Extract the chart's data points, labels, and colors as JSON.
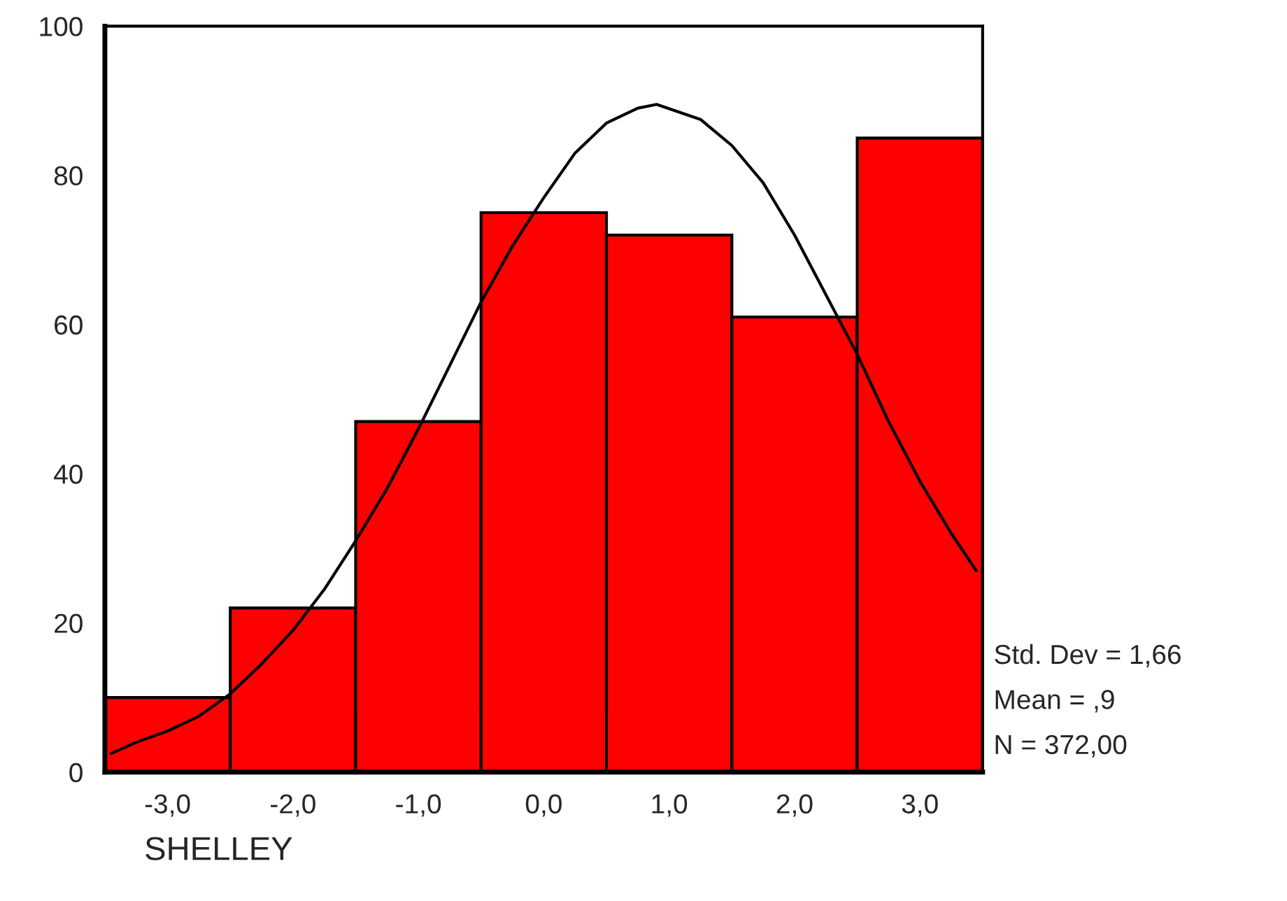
{
  "chart_data": {
    "type": "histogram",
    "xlabel": "SHELLEY",
    "bins": [
      -3.5,
      -2.5,
      -1.5,
      -0.5,
      0.5,
      1.5,
      2.5,
      3.5
    ],
    "values": [
      10,
      22,
      47,
      75,
      72,
      61,
      85
    ],
    "color": "#ff0000",
    "series": [
      {
        "type": "line",
        "color": "#000000",
        "x": [
          -3.45,
          -3.25,
          -3,
          -2.75,
          -2.5,
          -2.25,
          -2,
          -1.75,
          -1.5,
          -1.25,
          -1,
          -0.75,
          -0.5,
          -0.25,
          0,
          0.25,
          0.5,
          0.75,
          0.9,
          1.25,
          1.5,
          1.75,
          2,
          2.25,
          2.5,
          2.75,
          3,
          3.25,
          3.45
        ],
        "values": [
          2.5,
          4,
          5.5,
          7.5,
          10.5,
          14.5,
          19,
          24.5,
          31,
          38,
          46,
          54.5,
          63,
          70.5,
          77,
          83,
          87,
          89,
          89.5,
          87.5,
          84,
          79,
          72,
          64,
          56,
          47,
          39,
          32,
          27
        ]
      }
    ],
    "xlim": [
      -3.5,
      3.5
    ],
    "xticks": [
      {
        "value": -3,
        "label": "-3,0"
      },
      {
        "value": -2,
        "label": "-2,0"
      },
      {
        "value": -1,
        "label": "-1,0"
      },
      {
        "value": 0,
        "label": "0,0"
      },
      {
        "value": 1,
        "label": "1,0"
      },
      {
        "value": 2,
        "label": "2,0"
      },
      {
        "value": 3,
        "label": "3,0"
      }
    ],
    "ylim": [
      0,
      100
    ],
    "yticks": [
      0,
      20,
      40,
      60,
      80,
      100
    ],
    "grid": false,
    "annotations": [
      "Std. Dev = 1,66",
      "Mean = ,9",
      "N = 372,00"
    ]
  }
}
